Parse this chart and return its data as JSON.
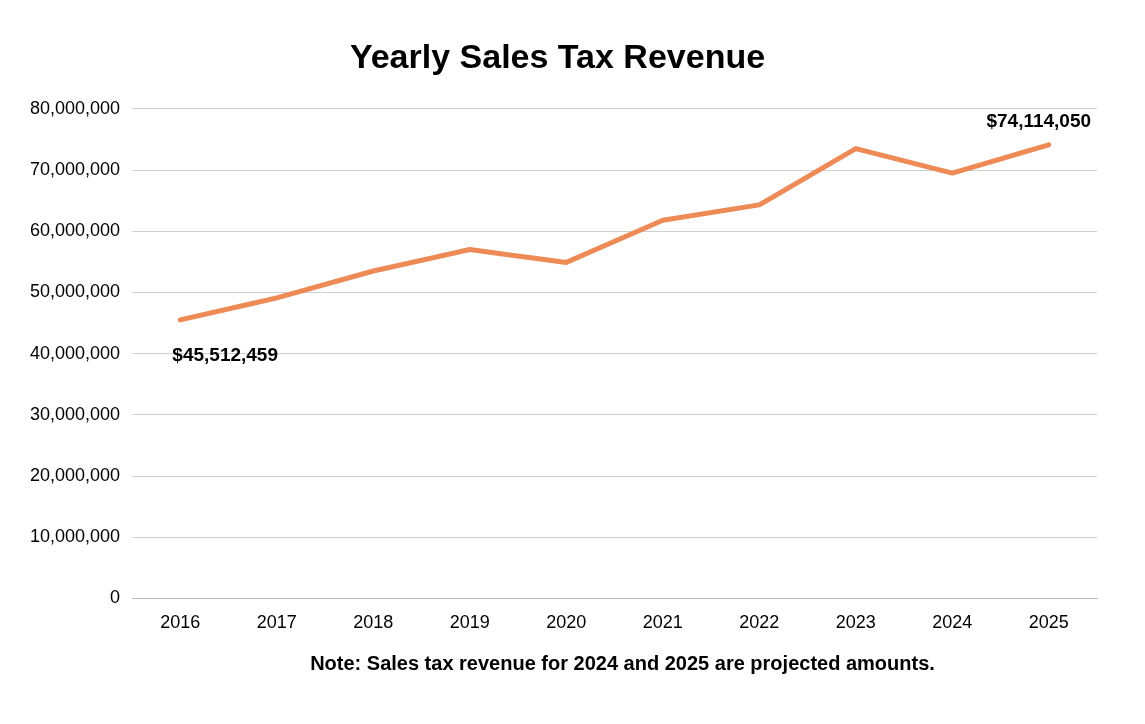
{
  "chart_data": {
    "type": "line",
    "title": "Yearly Sales Tax Revenue",
    "categories": [
      "2016",
      "2017",
      "2018",
      "2019",
      "2020",
      "2021",
      "2022",
      "2023",
      "2024",
      "2025"
    ],
    "series": [
      {
        "color": "#ed8a55",
        "values": [
          45512459,
          49100000,
          53500000,
          57000000,
          54900000,
          61800000,
          64300000,
          73500000,
          69500000,
          74114050
        ],
        "value_labels": [
          "$45,512,459",
          null,
          null,
          null,
          null,
          null,
          null,
          null,
          null,
          "$74,114,050"
        ]
      }
    ],
    "ylim": [
      0,
      80000000
    ],
    "yticks": [
      {
        "value": 0,
        "label": "0"
      },
      {
        "value": 10000000,
        "label": "10,000,000"
      },
      {
        "value": 20000000,
        "label": "20,000,000"
      },
      {
        "value": 30000000,
        "label": "30,000,000"
      },
      {
        "value": 40000000,
        "label": "40,000,000"
      },
      {
        "value": 50000000,
        "label": "50,000,000"
      },
      {
        "value": 60000000,
        "label": "60,000,000"
      },
      {
        "value": 70000000,
        "label": "70,000,000"
      },
      {
        "value": 80000000,
        "label": "80,000,000"
      }
    ],
    "grid": "y",
    "legend": false,
    "marker": "none",
    "line_style": "solid",
    "annotations": [
      "Note: Sales tax revenue for 2024 and 2025 are projected amounts."
    ]
  }
}
